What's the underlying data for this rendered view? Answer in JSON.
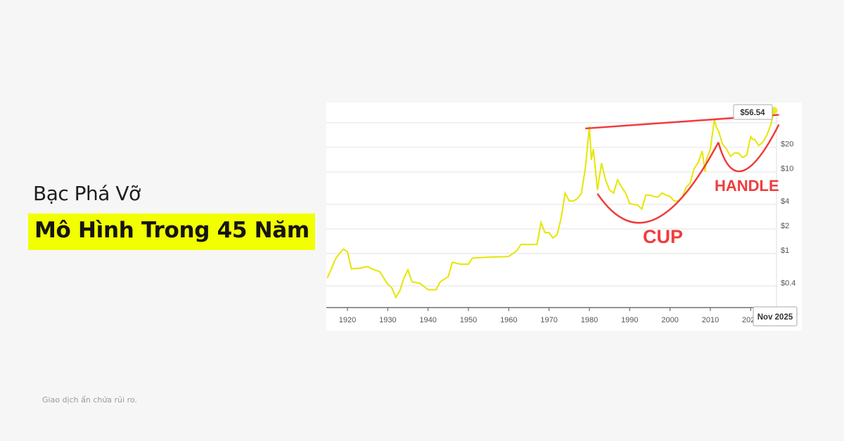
{
  "headline": {
    "subtitle": "Bạc Phá Vỡ",
    "title": "Mô Hình Trong 45 Năm"
  },
  "footer": {
    "disclaimer": "Giao dịch ẩn chứa rủi ro."
  },
  "colors": {
    "background": "#f6f6f6",
    "highlight": "#f2ff00",
    "series": "#e6e600",
    "annotation": "#f03c3c"
  },
  "chart_data": {
    "type": "line",
    "title": "",
    "xlabel": "",
    "ylabel": "",
    "y_scale": "log",
    "ylim": [
      0.25,
      60
    ],
    "xlim": [
      1915,
      2026
    ],
    "grid": true,
    "x_ticks": [
      "1920",
      "1930",
      "1940",
      "1950",
      "1960",
      "1970",
      "1980",
      "1990",
      "2000",
      "2010",
      "2020"
    ],
    "y_ticks": [
      {
        "value": 0.4,
        "label": "$0.4"
      },
      {
        "value": 1,
        "label": "$1"
      },
      {
        "value": 2,
        "label": "$2"
      },
      {
        "value": 4,
        "label": "$4"
      },
      {
        "value": 10,
        "label": "$10"
      },
      {
        "value": 20,
        "label": "$20"
      }
    ],
    "series": [
      {
        "x": [
          1915,
          1916,
          1917,
          1918,
          1919,
          1920,
          1921,
          1923,
          1925,
          1926,
          1928,
          1930,
          1931,
          1932,
          1933,
          1934,
          1935,
          1936,
          1938,
          1940,
          1942,
          1943,
          1945,
          1946,
          1948,
          1950,
          1951,
          1955,
          1960,
          1962,
          1963,
          1967,
          1968,
          1969,
          1970,
          1971,
          1972,
          1973,
          1974,
          1975,
          1976,
          1977,
          1978,
          1979,
          1980,
          1980.5,
          1981,
          1982,
          1983,
          1984,
          1985,
          1986,
          1987,
          1988,
          1989,
          1990,
          1991,
          1992,
          1993,
          1994,
          1995,
          1996,
          1997,
          1998,
          1999,
          2000,
          2001,
          2002,
          2003,
          2004,
          2005,
          2006,
          2007,
          2008,
          2008.7,
          2009,
          2010,
          2011,
          2011.5,
          2012,
          2013,
          2014,
          2015,
          2016,
          2017,
          2018,
          2019,
          2020,
          2020.5,
          2021,
          2022,
          2023,
          2024,
          2025,
          2025.8
        ],
        "y": [
          0.5,
          0.65,
          0.85,
          1.0,
          1.13,
          1.05,
          0.65,
          0.66,
          0.69,
          0.65,
          0.6,
          0.42,
          0.38,
          0.29,
          0.35,
          0.5,
          0.63,
          0.45,
          0.43,
          0.36,
          0.36,
          0.45,
          0.52,
          0.78,
          0.74,
          0.74,
          0.88,
          0.9,
          0.92,
          1.08,
          1.29,
          1.29,
          2.4,
          1.8,
          1.8,
          1.55,
          1.7,
          2.7,
          5.5,
          4.4,
          4.4,
          4.7,
          5.4,
          11,
          36,
          14,
          19,
          6,
          12.8,
          8,
          6,
          5.5,
          8,
          6.5,
          5.5,
          4.1,
          4.0,
          3.9,
          3.5,
          5.2,
          5.2,
          5.0,
          4.9,
          5.5,
          5.2,
          5.0,
          4.4,
          4.4,
          4.9,
          6.5,
          7.3,
          11,
          13,
          18,
          10,
          14,
          19,
          44,
          35,
          32,
          22,
          19,
          15.5,
          17,
          17,
          15,
          16,
          27,
          25,
          25,
          21,
          23,
          28,
          38,
          56.54
        ]
      }
    ],
    "tooltip": {
      "price_label": "$56.54",
      "date_label": "Nov 2025"
    },
    "annotations": {
      "resistance_line": {
        "from": [
          1979,
          34
        ],
        "to": [
          2027,
          50
        ]
      },
      "cup": {
        "label": "CUP",
        "start": [
          1982,
          5.4
        ],
        "bottom": [
          1996,
          2.6
        ],
        "end": [
          2012,
          23
        ]
      },
      "handle": {
        "label": "HANDLE",
        "start": [
          2012,
          23
        ],
        "bottom": [
          2018,
          10.3
        ],
        "end": [
          2027,
          38
        ]
      }
    }
  }
}
